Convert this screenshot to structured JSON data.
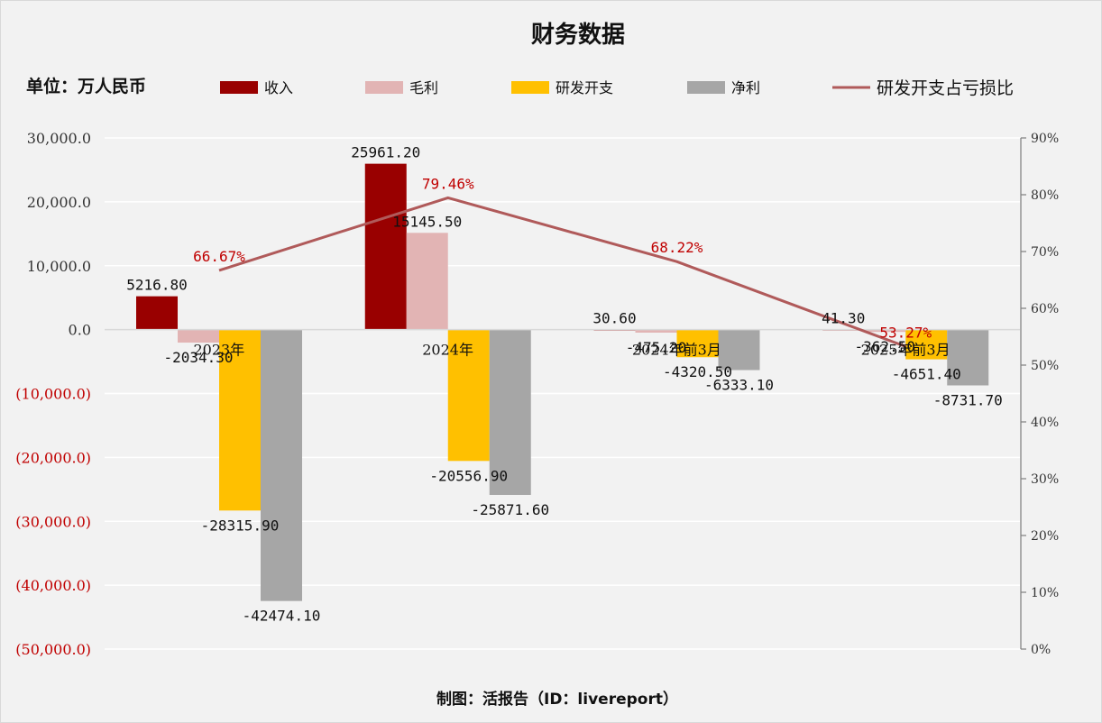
{
  "chart_data": {
    "type": "bar",
    "title": "财务数据",
    "unit_label": "单位：万人民币",
    "footer": "制图：活报告（ID：livereport）",
    "categories": [
      "2023年",
      "2024年",
      "2024年前3月",
      "2025年前3月"
    ],
    "series": [
      {
        "name": "收入",
        "color": "#990000",
        "values": [
          5216.8,
          25961.2,
          30.6,
          41.3
        ],
        "labels": [
          "5216.80",
          "25961.20",
          "30.60",
          "41.30"
        ]
      },
      {
        "name": "毛利",
        "color": "#e2b4b4",
        "values": [
          -2034.3,
          15145.5,
          -475.2,
          -362.5
        ],
        "labels": [
          "-2034.30",
          "15145.50",
          "-475.20",
          "-362.50"
        ]
      },
      {
        "name": "研发开支",
        "color": "#ffc000",
        "values": [
          -28315.9,
          -20556.9,
          -4320.5,
          -4651.4
        ],
        "labels": [
          "-28315.90",
          "-20556.90",
          "-4320.50",
          "-4651.40"
        ]
      },
      {
        "name": "净利",
        "color": "#a6a6a6",
        "values": [
          -42474.1,
          -25871.6,
          -6333.1,
          -8731.7
        ],
        "labels": [
          "-42474.10",
          "-25871.60",
          "-6333.10",
          "-8731.70"
        ]
      }
    ],
    "line": {
      "name": "研发开支占亏损比",
      "color": "#b05a5a",
      "axis": "right",
      "values": [
        66.67,
        79.46,
        68.22,
        53.27
      ],
      "labels": [
        "66.67%",
        "79.46%",
        "68.22%",
        "53.27%"
      ]
    },
    "ylim": [
      -50000,
      30000
    ],
    "yticks": [
      30000,
      20000,
      10000,
      0,
      -10000,
      -20000,
      -30000,
      -40000,
      -50000
    ],
    "ytick_labels": [
      "30,000.0",
      "20,000.0",
      "10,000.0",
      "0.0",
      "(10,000.0)",
      "(20,000.0)",
      "(30,000.0)",
      "(40,000.0)",
      "(50,000.0)"
    ],
    "y2lim": [
      0,
      90
    ],
    "y2ticks": [
      90,
      80,
      70,
      60,
      50,
      40,
      30,
      20,
      10,
      0
    ],
    "y2tick_labels": [
      "90%",
      "80%",
      "70%",
      "60%",
      "50%",
      "40%",
      "30%",
      "20%",
      "10%",
      "0%"
    ],
    "negative_tick_color": "#c00000",
    "grid": true,
    "legend_position": "top"
  }
}
